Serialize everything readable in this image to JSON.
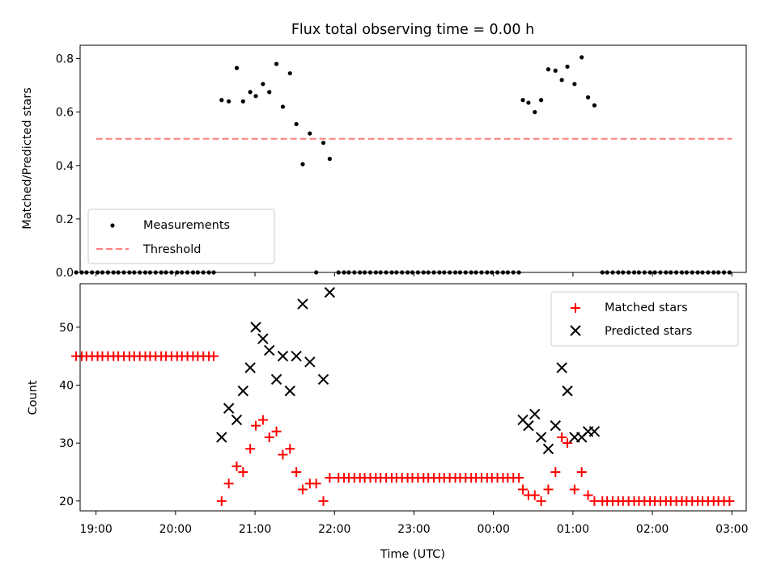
{
  "chart_data": [
    {
      "type": "scatter",
      "title": "Flux total observing time = 0.00 h",
      "ylabel": "Matched/Predicted stars",
      "xlim": [
        -0.2,
        8.18
      ],
      "ylim": [
        0,
        0.85
      ],
      "yticks": [
        0.0,
        0.2,
        0.4,
        0.6,
        0.8
      ],
      "legend_position": "lower-left",
      "threshold": {
        "name": "Threshold",
        "value": 0.5,
        "x_range": [
          0.0,
          8.0
        ],
        "color": "#ff7f7f",
        "style": "dashed"
      },
      "series": [
        {
          "name": "Measurements",
          "color": "#000000",
          "points": [
            [
              -0.25,
              0
            ],
            [
              -0.18,
              0
            ],
            [
              -0.12,
              0
            ],
            [
              -0.05,
              0
            ],
            [
              0.02,
              0
            ],
            [
              0.08,
              0
            ],
            [
              0.15,
              0
            ],
            [
              0.22,
              0
            ],
            [
              0.28,
              0
            ],
            [
              0.35,
              0
            ],
            [
              0.42,
              0
            ],
            [
              0.48,
              0
            ],
            [
              0.55,
              0
            ],
            [
              0.62,
              0
            ],
            [
              0.68,
              0
            ],
            [
              0.75,
              0
            ],
            [
              0.82,
              0
            ],
            [
              0.88,
              0
            ],
            [
              0.95,
              0
            ],
            [
              1.02,
              0
            ],
            [
              1.08,
              0
            ],
            [
              1.15,
              0
            ],
            [
              1.22,
              0
            ],
            [
              1.28,
              0
            ],
            [
              1.35,
              0
            ],
            [
              1.42,
              0
            ],
            [
              1.48,
              0
            ],
            [
              1.58,
              0.645
            ],
            [
              1.67,
              0.64
            ],
            [
              1.77,
              0.765
            ],
            [
              1.85,
              0.64
            ],
            [
              1.94,
              0.675
            ],
            [
              2.01,
              0.66
            ],
            [
              2.1,
              0.705
            ],
            [
              2.18,
              0.675
            ],
            [
              2.27,
              0.78
            ],
            [
              2.35,
              0.62
            ],
            [
              2.44,
              0.745
            ],
            [
              2.52,
              0.555
            ],
            [
              2.6,
              0.405
            ],
            [
              2.69,
              0.52
            ],
            [
              2.77,
              0.0
            ],
            [
              2.86,
              0.485
            ],
            [
              2.94,
              0.425
            ],
            [
              3.05,
              0
            ],
            [
              3.12,
              0
            ],
            [
              3.18,
              0
            ],
            [
              3.25,
              0
            ],
            [
              3.32,
              0
            ],
            [
              3.38,
              0
            ],
            [
              3.45,
              0
            ],
            [
              3.52,
              0
            ],
            [
              3.58,
              0
            ],
            [
              3.65,
              0
            ],
            [
              3.72,
              0
            ],
            [
              3.78,
              0
            ],
            [
              3.85,
              0
            ],
            [
              3.92,
              0
            ],
            [
              3.98,
              0
            ],
            [
              4.05,
              0
            ],
            [
              4.12,
              0
            ],
            [
              4.18,
              0
            ],
            [
              4.25,
              0
            ],
            [
              4.32,
              0
            ],
            [
              4.38,
              0
            ],
            [
              4.45,
              0
            ],
            [
              4.52,
              0
            ],
            [
              4.58,
              0
            ],
            [
              4.65,
              0
            ],
            [
              4.72,
              0
            ],
            [
              4.78,
              0
            ],
            [
              4.85,
              0
            ],
            [
              4.92,
              0
            ],
            [
              4.98,
              0
            ],
            [
              5.05,
              0
            ],
            [
              5.12,
              0
            ],
            [
              5.18,
              0
            ],
            [
              5.25,
              0
            ],
            [
              5.32,
              0
            ],
            [
              5.37,
              0.645
            ],
            [
              5.44,
              0.635
            ],
            [
              5.52,
              0.6
            ],
            [
              5.6,
              0.645
            ],
            [
              5.69,
              0.76
            ],
            [
              5.78,
              0.755
            ],
            [
              5.86,
              0.72
            ],
            [
              5.93,
              0.77
            ],
            [
              6.02,
              0.705
            ],
            [
              6.11,
              0.805
            ],
            [
              6.19,
              0.655
            ],
            [
              6.27,
              0.625
            ],
            [
              6.37,
              0
            ],
            [
              6.43,
              0
            ],
            [
              6.5,
              0
            ],
            [
              6.57,
              0
            ],
            [
              6.63,
              0
            ],
            [
              6.7,
              0
            ],
            [
              6.77,
              0
            ],
            [
              6.83,
              0
            ],
            [
              6.9,
              0
            ],
            [
              6.97,
              0
            ],
            [
              7.03,
              0
            ],
            [
              7.1,
              0
            ],
            [
              7.17,
              0
            ],
            [
              7.23,
              0
            ],
            [
              7.3,
              0
            ],
            [
              7.37,
              0
            ],
            [
              7.43,
              0
            ],
            [
              7.5,
              0
            ],
            [
              7.57,
              0
            ],
            [
              7.63,
              0
            ],
            [
              7.7,
              0
            ],
            [
              7.77,
              0
            ],
            [
              7.83,
              0
            ],
            [
              7.9,
              0
            ],
            [
              7.97,
              0
            ]
          ]
        }
      ]
    },
    {
      "type": "scatter",
      "xlabel": "Time (UTC)",
      "ylabel": "Count",
      "xlim": [
        -0.2,
        8.18
      ],
      "ylim": [
        18.3,
        57.5
      ],
      "yticks": [
        20,
        30,
        40,
        50
      ],
      "xtick_values": [
        0,
        1,
        2,
        3,
        4,
        5,
        6,
        7,
        8
      ],
      "xtick_labels": [
        "19:00",
        "20:00",
        "21:00",
        "22:00",
        "23:00",
        "00:00",
        "01:00",
        "02:00",
        "03:00"
      ],
      "legend_position": "top-right",
      "series": [
        {
          "name": "Matched stars",
          "marker": "plus",
          "color": "#ff0000",
          "points": [
            [
              -0.25,
              45
            ],
            [
              -0.18,
              45
            ],
            [
              -0.12,
              45
            ],
            [
              -0.05,
              45
            ],
            [
              0.02,
              45
            ],
            [
              0.08,
              45
            ],
            [
              0.15,
              45
            ],
            [
              0.22,
              45
            ],
            [
              0.28,
              45
            ],
            [
              0.35,
              45
            ],
            [
              0.42,
              45
            ],
            [
              0.48,
              45
            ],
            [
              0.55,
              45
            ],
            [
              0.62,
              45
            ],
            [
              0.68,
              45
            ],
            [
              0.75,
              45
            ],
            [
              0.82,
              45
            ],
            [
              0.88,
              45
            ],
            [
              0.95,
              45
            ],
            [
              1.02,
              45
            ],
            [
              1.08,
              45
            ],
            [
              1.15,
              45
            ],
            [
              1.22,
              45
            ],
            [
              1.28,
              45
            ],
            [
              1.35,
              45
            ],
            [
              1.42,
              45
            ],
            [
              1.48,
              45
            ],
            [
              1.58,
              20
            ],
            [
              1.67,
              23
            ],
            [
              1.77,
              26
            ],
            [
              1.85,
              25
            ],
            [
              1.94,
              29
            ],
            [
              2.01,
              33
            ],
            [
              2.1,
              34
            ],
            [
              2.18,
              31
            ],
            [
              2.27,
              32
            ],
            [
              2.35,
              28
            ],
            [
              2.44,
              29
            ],
            [
              2.52,
              25
            ],
            [
              2.6,
              22
            ],
            [
              2.69,
              23
            ],
            [
              2.77,
              23
            ],
            [
              2.86,
              20
            ],
            [
              2.94,
              24
            ],
            [
              3.05,
              24
            ],
            [
              3.12,
              24
            ],
            [
              3.18,
              24
            ],
            [
              3.25,
              24
            ],
            [
              3.32,
              24
            ],
            [
              3.38,
              24
            ],
            [
              3.45,
              24
            ],
            [
              3.52,
              24
            ],
            [
              3.58,
              24
            ],
            [
              3.65,
              24
            ],
            [
              3.72,
              24
            ],
            [
              3.78,
              24
            ],
            [
              3.85,
              24
            ],
            [
              3.92,
              24
            ],
            [
              3.98,
              24
            ],
            [
              4.05,
              24
            ],
            [
              4.12,
              24
            ],
            [
              4.18,
              24
            ],
            [
              4.25,
              24
            ],
            [
              4.32,
              24
            ],
            [
              4.38,
              24
            ],
            [
              4.45,
              24
            ],
            [
              4.52,
              24
            ],
            [
              4.58,
              24
            ],
            [
              4.65,
              24
            ],
            [
              4.72,
              24
            ],
            [
              4.78,
              24
            ],
            [
              4.85,
              24
            ],
            [
              4.92,
              24
            ],
            [
              4.98,
              24
            ],
            [
              5.05,
              24
            ],
            [
              5.12,
              24
            ],
            [
              5.18,
              24
            ],
            [
              5.25,
              24
            ],
            [
              5.32,
              24
            ],
            [
              5.37,
              22
            ],
            [
              5.44,
              21
            ],
            [
              5.52,
              21
            ],
            [
              5.6,
              20
            ],
            [
              5.69,
              22
            ],
            [
              5.78,
              25
            ],
            [
              5.86,
              31
            ],
            [
              5.93,
              30
            ],
            [
              6.02,
              22
            ],
            [
              6.11,
              25
            ],
            [
              6.19,
              21
            ],
            [
              6.27,
              20
            ],
            [
              6.37,
              20
            ],
            [
              6.43,
              20
            ],
            [
              6.5,
              20
            ],
            [
              6.57,
              20
            ],
            [
              6.63,
              20
            ],
            [
              6.7,
              20
            ],
            [
              6.77,
              20
            ],
            [
              6.83,
              20
            ],
            [
              6.9,
              20
            ],
            [
              6.97,
              20
            ],
            [
              7.03,
              20
            ],
            [
              7.1,
              20
            ],
            [
              7.17,
              20
            ],
            [
              7.23,
              20
            ],
            [
              7.3,
              20
            ],
            [
              7.37,
              20
            ],
            [
              7.43,
              20
            ],
            [
              7.5,
              20
            ],
            [
              7.57,
              20
            ],
            [
              7.63,
              20
            ],
            [
              7.7,
              20
            ],
            [
              7.77,
              20
            ],
            [
              7.83,
              20
            ],
            [
              7.9,
              20
            ],
            [
              7.97,
              20
            ]
          ]
        },
        {
          "name": "Predicted stars",
          "marker": "x",
          "color": "#000000",
          "points": [
            [
              1.58,
              31
            ],
            [
              1.67,
              36
            ],
            [
              1.77,
              34
            ],
            [
              1.85,
              39
            ],
            [
              1.94,
              43
            ],
            [
              2.01,
              50
            ],
            [
              2.1,
              48
            ],
            [
              2.18,
              46
            ],
            [
              2.27,
              41
            ],
            [
              2.35,
              45
            ],
            [
              2.44,
              39
            ],
            [
              2.52,
              45
            ],
            [
              2.6,
              54
            ],
            [
              2.69,
              44
            ],
            [
              2.86,
              41
            ],
            [
              2.94,
              56
            ],
            [
              5.37,
              34
            ],
            [
              5.44,
              33
            ],
            [
              5.52,
              35
            ],
            [
              5.6,
              31
            ],
            [
              5.69,
              29
            ],
            [
              5.78,
              33
            ],
            [
              5.86,
              43
            ],
            [
              5.93,
              39
            ],
            [
              6.02,
              31
            ],
            [
              6.11,
              31
            ],
            [
              6.19,
              32
            ],
            [
              6.27,
              32
            ]
          ]
        }
      ]
    }
  ]
}
